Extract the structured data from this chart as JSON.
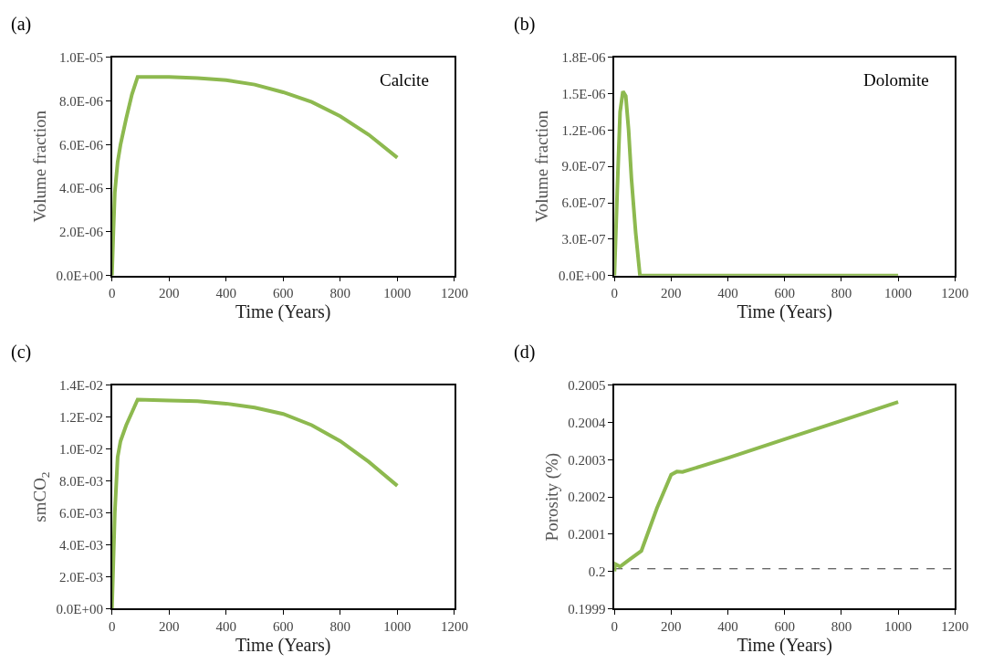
{
  "chart_data": [
    {
      "type": "line",
      "title": "(a)",
      "xlabel": "Time (Years)",
      "ylabel": "Volume fraction",
      "annotations": [
        "Calcite"
      ],
      "x": [
        0,
        5,
        10,
        20,
        30,
        50,
        70,
        90,
        200,
        300,
        400,
        500,
        600,
        700,
        800,
        900,
        1000
      ],
      "series": [
        {
          "color": "#8db94f",
          "values": [
            0,
            2e-06,
            3.8e-06,
            5.2e-06,
            6e-06,
            7.2e-06,
            8.3e-06,
            9.1e-06,
            9.1e-06,
            9.05e-06,
            8.95e-06,
            8.75e-06,
            8.4e-06,
            7.95e-06,
            7.3e-06,
            6.45e-06,
            5.4e-06
          ]
        }
      ],
      "xlim": [
        0,
        1200
      ],
      "xticks": [
        0,
        200,
        400,
        600,
        800,
        1000,
        1200
      ],
      "ylim": [
        0,
        1e-05
      ],
      "yticks": [
        {
          "value": 0,
          "label": "0.0E+00"
        },
        {
          "value": 2e-06,
          "label": "2.0E-06"
        },
        {
          "value": 4e-06,
          "label": "4.0E-06"
        },
        {
          "value": 6e-06,
          "label": "6.0E-06"
        },
        {
          "value": 8e-06,
          "label": "8.0E-06"
        },
        {
          "value": 1e-05,
          "label": "1.0E-05"
        }
      ],
      "marker": "none",
      "line_style": "solid"
    },
    {
      "type": "line",
      "title": "(b)",
      "xlabel": "Time (Years)",
      "ylabel": "Volume fraction",
      "annotations": [
        "Dolomite"
      ],
      "x": [
        0,
        10,
        20,
        30,
        40,
        50,
        60,
        75,
        90,
        200,
        400,
        600,
        800,
        1000
      ],
      "series": [
        {
          "color": "#8db94f",
          "values": [
            0,
            7e-07,
            1.35e-06,
            1.52e-06,
            1.48e-06,
            1.2e-06,
            8e-07,
            3.5e-07,
            0,
            0,
            0,
            0,
            0,
            0
          ]
        }
      ],
      "xlim": [
        0,
        1200
      ],
      "xticks": [
        0,
        200,
        400,
        600,
        800,
        1000,
        1200
      ],
      "ylim": [
        0,
        1.8e-06
      ],
      "yticks": [
        {
          "value": 0,
          "label": "0.0E+00"
        },
        {
          "value": 3e-07,
          "label": "3.0E-07"
        },
        {
          "value": 6e-07,
          "label": "6.0E-07"
        },
        {
          "value": 9e-07,
          "label": "9.0E-07"
        },
        {
          "value": 1.2e-06,
          "label": "1.2E-06"
        },
        {
          "value": 1.5e-06,
          "label": "1.5E-06"
        },
        {
          "value": 1.8e-06,
          "label": "1.8E-06"
        }
      ],
      "marker": "none",
      "line_style": "solid"
    },
    {
      "type": "line",
      "title": "(c)",
      "xlabel": "Time (Years)",
      "ylabel": "smCO$_{2}$",
      "x": [
        0,
        5,
        10,
        20,
        30,
        50,
        70,
        90,
        200,
        300,
        400,
        500,
        600,
        700,
        800,
        900,
        1000
      ],
      "series": [
        {
          "color": "#8db94f",
          "values": [
            0,
            0.003,
            0.006,
            0.0095,
            0.0105,
            0.0115,
            0.0123,
            0.0131,
            0.01305,
            0.013,
            0.01285,
            0.0126,
            0.0122,
            0.0115,
            0.0105,
            0.0092,
            0.0077
          ]
        }
      ],
      "xlim": [
        0,
        1200
      ],
      "xticks": [
        0,
        200,
        400,
        600,
        800,
        1000,
        1200
      ],
      "ylim": [
        0,
        0.014
      ],
      "yticks": [
        {
          "value": 0,
          "label": "0.0E+00"
        },
        {
          "value": 0.002,
          "label": "2.0E-03"
        },
        {
          "value": 0.004,
          "label": "4.0E-03"
        },
        {
          "value": 0.006,
          "label": "6.0E-03"
        },
        {
          "value": 0.008,
          "label": "8.0E-03"
        },
        {
          "value": 0.01,
          "label": "1.0E-02"
        },
        {
          "value": 0.012,
          "label": "1.2E-02"
        },
        {
          "value": 0.014,
          "label": "1.4E-02"
        }
      ],
      "marker": "none",
      "line_style": "solid"
    },
    {
      "type": "line",
      "title": "(d)",
      "xlabel": "Time (Years)",
      "ylabel": "Porosity (%)",
      "x": [
        0,
        2,
        20,
        50,
        95,
        150,
        200,
        220,
        240,
        400,
        600,
        800,
        1000
      ],
      "series": [
        {
          "color": "#8db94f",
          "values": [
            0.2,
            0.20002,
            0.200013,
            0.20003,
            0.200055,
            0.20017,
            0.20026,
            0.200268,
            0.200267,
            0.200305,
            0.200355,
            0.200405,
            0.200455
          ]
        }
      ],
      "xlim": [
        0,
        1200
      ],
      "xticks": [
        0,
        200,
        400,
        600,
        800,
        1000,
        1200
      ],
      "ylim": [
        0.1999,
        0.2005
      ],
      "yticks": [
        0.1999,
        0.2,
        0.2001,
        0.2002,
        0.2003,
        0.2004,
        0.2005
      ],
      "ref_lines": [
        {
          "axis": "y",
          "value": 0.200007,
          "color": "#333333",
          "line_style": "dashed"
        }
      ],
      "marker": "none",
      "line_style": "solid"
    }
  ]
}
